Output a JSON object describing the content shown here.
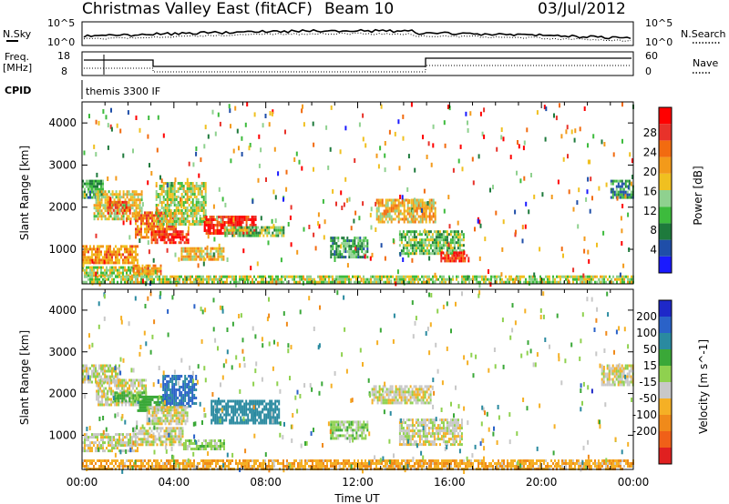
{
  "header": {
    "title": "Christmas Valley East (fitACF)",
    "beam": "Beam 10",
    "date": "03/Jul/2012"
  },
  "summary_panels": {
    "nsky": {
      "left_label": "N.Sky",
      "right_label": "N.Search",
      "left_ticks": [
        "10^5",
        "10^0"
      ],
      "right_ticks": [
        "10^5",
        "10^0"
      ]
    },
    "freq": {
      "left_label_1": "Freq.",
      "left_label_2": "[MHz]",
      "right_label": "Nave",
      "left_ticks": [
        "18",
        "8"
      ],
      "right_ticks": [
        "60",
        "0"
      ]
    },
    "cpid": {
      "label": "CPID",
      "value": "themis 3300 IF"
    }
  },
  "colorbars": {
    "power": {
      "title": "Power [dB]",
      "ticks": [
        "28",
        "24",
        "20",
        "16",
        "12",
        "8",
        "4"
      ],
      "colors": [
        "#1a1aff",
        "#1f4ea8",
        "#1e7a3c",
        "#3dbb3d",
        "#8fd18f",
        "#f0c020",
        "#f39a1a",
        "#f26b10",
        "#e8322a",
        "#ff0000"
      ]
    },
    "velocity": {
      "title": "Velocity [m s^-1]",
      "ticks": [
        "200",
        "100",
        "50",
        "15",
        "-15",
        "-50",
        "-100",
        "-200"
      ],
      "colors": [
        "#1e28c8",
        "#2a62c8",
        "#2a8aa0",
        "#3aa838",
        "#8fd14f",
        "#c8c8c8",
        "#f5b025",
        "#f08a1a",
        "#f06018",
        "#e02020"
      ]
    }
  },
  "chart_data": [
    {
      "type": "heatmap",
      "title": "",
      "ylabel": "Slant Range [km]",
      "xlabel": "",
      "ylim": [
        180,
        4500
      ],
      "xlim": [
        0,
        24
      ],
      "yticks": [
        "1000",
        "2000",
        "3000",
        "4000"
      ],
      "colorbar": "Power [dB]",
      "regions": [
        {
          "t0": 0.0,
          "t1": 0.9,
          "r0": 2250,
          "r1": 2650,
          "value": 10
        },
        {
          "t0": 0.5,
          "t1": 2.6,
          "r0": 1750,
          "r1": 2400,
          "value": 16
        },
        {
          "t0": 1.1,
          "t1": 2.1,
          "r0": 1850,
          "r1": 2150,
          "value": 24
        },
        {
          "t0": 2.3,
          "t1": 4.1,
          "r0": 1300,
          "r1": 1900,
          "value": 22
        },
        {
          "t0": 3.2,
          "t1": 5.4,
          "r0": 1600,
          "r1": 2600,
          "value": 14
        },
        {
          "t0": 3.0,
          "t1": 4.6,
          "r0": 1150,
          "r1": 1450,
          "value": 26
        },
        {
          "t0": 5.3,
          "t1": 7.6,
          "r0": 1350,
          "r1": 1800,
          "value": 27
        },
        {
          "t0": 6.2,
          "t1": 8.8,
          "r0": 1300,
          "r1": 1550,
          "value": 12
        },
        {
          "t0": 0.0,
          "t1": 2.4,
          "r0": 700,
          "r1": 1100,
          "value": 20
        },
        {
          "t0": 0.0,
          "t1": 3.0,
          "r0": 380,
          "r1": 600,
          "value": 14
        },
        {
          "t0": 2.2,
          "t1": 3.4,
          "r0": 430,
          "r1": 640,
          "value": 20
        },
        {
          "t0": 4.3,
          "t1": 6.2,
          "r0": 750,
          "r1": 1050,
          "value": 18
        },
        {
          "t0": 10.8,
          "t1": 12.4,
          "r0": 820,
          "r1": 1300,
          "value": 10
        },
        {
          "t0": 12.8,
          "t1": 15.4,
          "r0": 1650,
          "r1": 2200,
          "value": 18
        },
        {
          "t0": 13.8,
          "t1": 16.6,
          "r0": 900,
          "r1": 1450,
          "value": 12
        },
        {
          "t0": 15.6,
          "t1": 16.8,
          "r0": 720,
          "r1": 950,
          "value": 26
        },
        {
          "t0": 23.0,
          "t1": 24.0,
          "r0": 2200,
          "r1": 2650,
          "value": 8
        },
        {
          "t0": 0.0,
          "t1": 24.0,
          "r0": 200,
          "r1": 380,
          "value": 14
        }
      ]
    },
    {
      "type": "heatmap",
      "title": "",
      "ylabel": "Slant Range [km]",
      "xlabel": "Time UT",
      "ylim": [
        180,
        4500
      ],
      "xlim": [
        0,
        24
      ],
      "xticks": [
        "00:00",
        "04:00",
        "08:00",
        "12:00",
        "16:00",
        "20:00",
        "00:00"
      ],
      "yticks": [
        "1000",
        "2000",
        "3000",
        "4000"
      ],
      "colorbar": "Velocity [m s^-1]",
      "regions": [
        {
          "t0": 0.0,
          "t1": 1.6,
          "r0": 2300,
          "r1": 2700,
          "value": 5
        },
        {
          "t0": 0.6,
          "t1": 2.8,
          "r0": 1750,
          "r1": 2350,
          "value": 0
        },
        {
          "t0": 1.4,
          "t1": 2.8,
          "r0": 1800,
          "r1": 2050,
          "value": 60
        },
        {
          "t0": 2.4,
          "t1": 3.6,
          "r0": 1600,
          "r1": 1950,
          "value": 80
        },
        {
          "t0": 3.5,
          "t1": 5.0,
          "r0": 1700,
          "r1": 2450,
          "value": 210
        },
        {
          "t0": 2.8,
          "t1": 4.6,
          "r0": 1250,
          "r1": 1700,
          "value": 0
        },
        {
          "t0": 5.6,
          "t1": 8.6,
          "r0": 1300,
          "r1": 1850,
          "value": 130
        },
        {
          "t0": 0.0,
          "t1": 2.4,
          "r0": 650,
          "r1": 1050,
          "value": 0
        },
        {
          "t0": 2.2,
          "t1": 4.4,
          "r0": 800,
          "r1": 1200,
          "value": 0
        },
        {
          "t0": 4.4,
          "t1": 6.2,
          "r0": 650,
          "r1": 900,
          "value": 30
        },
        {
          "t0": 10.8,
          "t1": 12.4,
          "r0": 900,
          "r1": 1350,
          "value": 30
        },
        {
          "t0": 12.6,
          "t1": 15.2,
          "r0": 1750,
          "r1": 2200,
          "value": 0
        },
        {
          "t0": 13.8,
          "t1": 16.5,
          "r0": 750,
          "r1": 1400,
          "value": 0
        },
        {
          "t0": 22.6,
          "t1": 24.0,
          "r0": 2200,
          "r1": 2700,
          "value": 0
        },
        {
          "t0": 0.0,
          "t1": 24.0,
          "r0": 200,
          "r1": 420,
          "value": -40
        }
      ]
    }
  ]
}
